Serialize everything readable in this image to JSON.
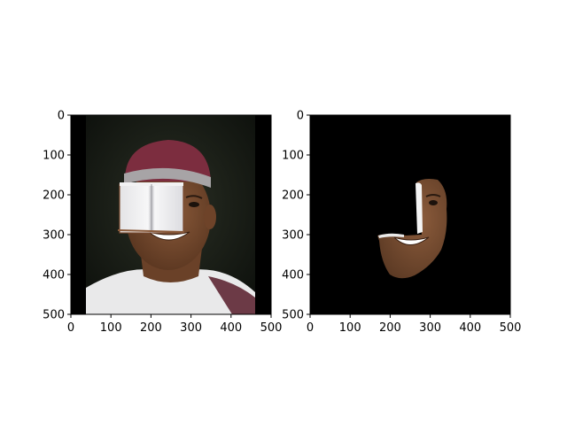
{
  "figure": {
    "background": "#ffffff",
    "panels": [
      {
        "id": "left",
        "image": "person in maroon cap with white book covering left side of face",
        "x_ticks": [
          "0",
          "100",
          "200",
          "300",
          "400",
          "500"
        ],
        "y_ticks": [
          "0",
          "100",
          "200",
          "300",
          "400",
          "500"
        ],
        "xlim": [
          0,
          500
        ],
        "ylim": [
          500,
          0
        ]
      },
      {
        "id": "right",
        "image": "segmented partial face region on black background",
        "x_ticks": [
          "0",
          "100",
          "200",
          "300",
          "400",
          "500"
        ],
        "y_ticks": [
          "0",
          "100",
          "200",
          "300",
          "400",
          "500"
        ],
        "xlim": [
          0,
          500
        ],
        "ylim": [
          500,
          0
        ]
      }
    ]
  }
}
